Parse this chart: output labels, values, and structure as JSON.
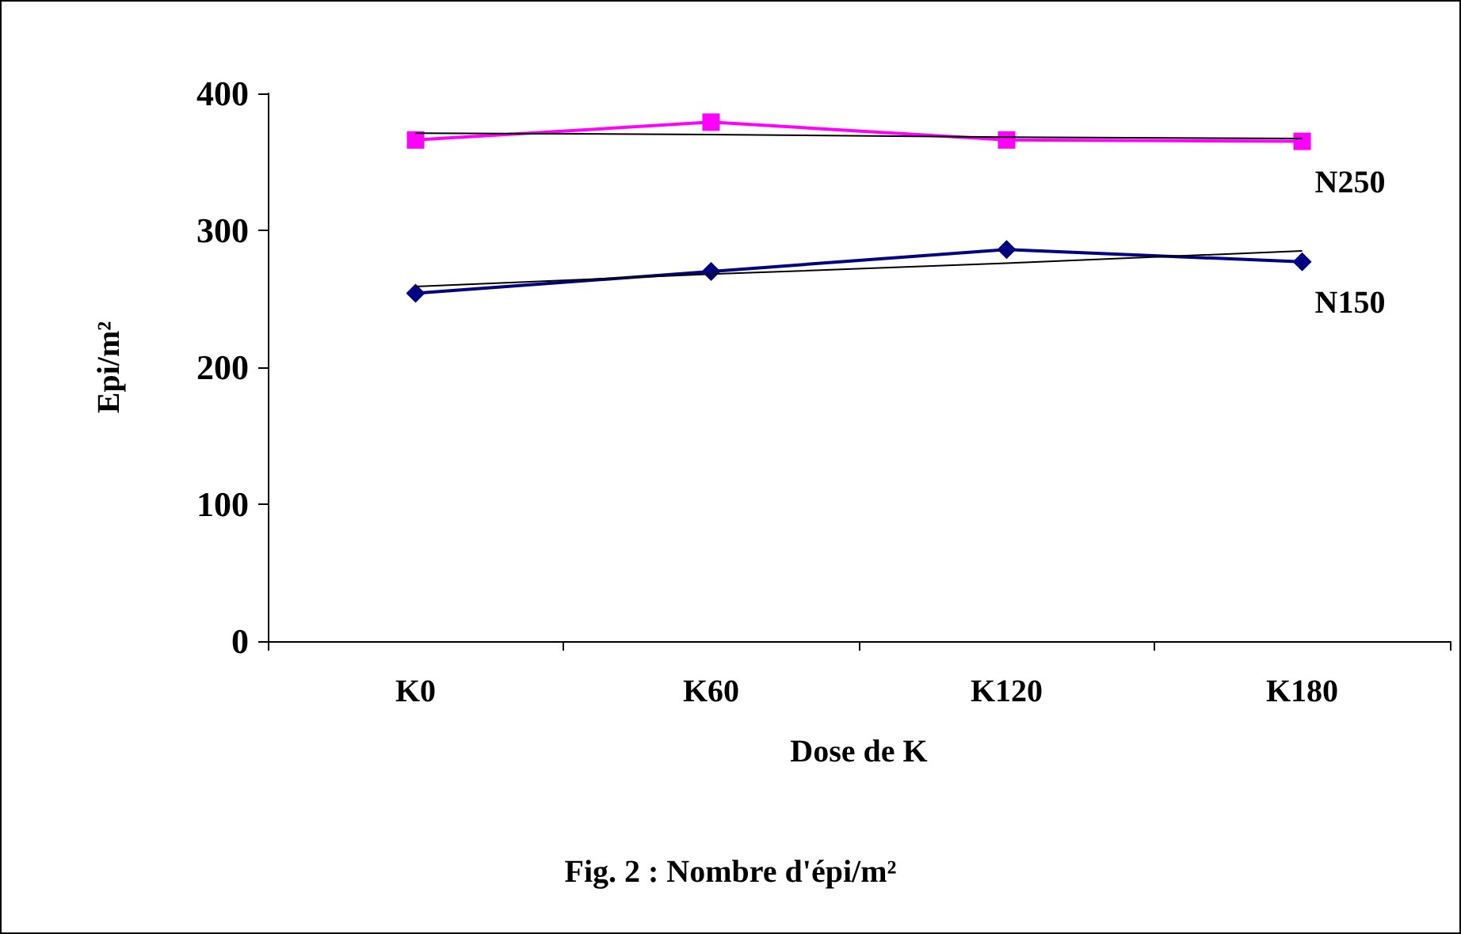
{
  "chart_data": {
    "type": "line",
    "xlabel": "Dose de K",
    "ylabel": "Epi/m²",
    "categories": [
      "K0",
      "K60",
      "K120",
      "K180"
    ],
    "series": [
      {
        "name": "N250",
        "color": "#ff00ff",
        "marker": "square",
        "values": [
          366,
          379,
          366,
          365
        ]
      },
      {
        "name": "N150",
        "color": "#000080",
        "marker": "diamond",
        "values": [
          254,
          270,
          286,
          277
        ]
      },
      {
        "color": "#000000",
        "marker": "none",
        "values": [
          371,
          370,
          368,
          367
        ]
      },
      {
        "color": "#000000",
        "marker": "none",
        "values": [
          259,
          268,
          276,
          285
        ]
      }
    ],
    "ylim": [
      0,
      400
    ],
    "yticks": [
      0,
      100,
      200,
      300,
      400
    ],
    "grid": false,
    "legend": false,
    "annotations": [
      "Fig. 2 : Nombre d'épi/m²"
    ]
  }
}
